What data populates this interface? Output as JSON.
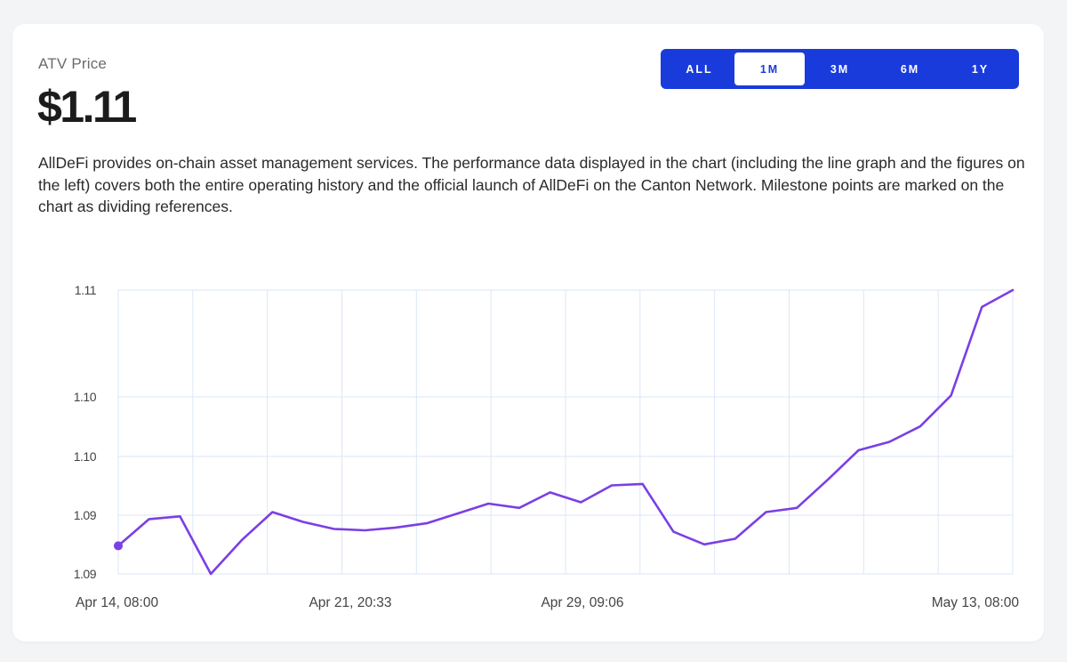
{
  "header": {
    "label": "ATV Price",
    "price": "$1.11",
    "description": "AllDeFi provides on-chain asset management services. The performance data displayed in the chart (including the line graph and the figures on the left) covers both the entire operating history and the official launch of AllDeFi on the Canton Network. Milestone points are marked on the chart as dividing references."
  },
  "range_selector": {
    "options": [
      "ALL",
      "1M",
      "3M",
      "6M",
      "1Y"
    ],
    "selected": "1M"
  },
  "colors": {
    "line": "#7b3fe4",
    "grid": "#dbe7f7",
    "range_bg": "#1a3bdc"
  },
  "chart_data": {
    "type": "line",
    "title": "",
    "xlabel": "",
    "ylabel": "",
    "y_tick_labels": [
      "1.11",
      "1.10",
      "1.10",
      "1.09",
      "1.09"
    ],
    "x_tick_labels": [
      "Apr 14, 08:00",
      "Apr 21, 20:33",
      "Apr 29, 09:06",
      "May 13, 08:00"
    ],
    "ylim": [
      1.0894,
      1.1096
    ],
    "grid": true,
    "series": [
      {
        "name": "",
        "values": [
          1.0914,
          1.0933,
          1.0935,
          1.0894,
          1.0918,
          1.0938,
          1.0931,
          1.0926,
          1.0925,
          1.0927,
          1.093,
          1.0937,
          1.0944,
          1.0941,
          1.0952,
          1.0945,
          1.0957,
          1.0958,
          1.0924,
          1.0915,
          1.0919,
          1.0938,
          1.0941,
          1.0961,
          1.0982,
          1.0988,
          1.0999,
          1.1021,
          1.1084,
          1.1096
        ]
      }
    ]
  }
}
